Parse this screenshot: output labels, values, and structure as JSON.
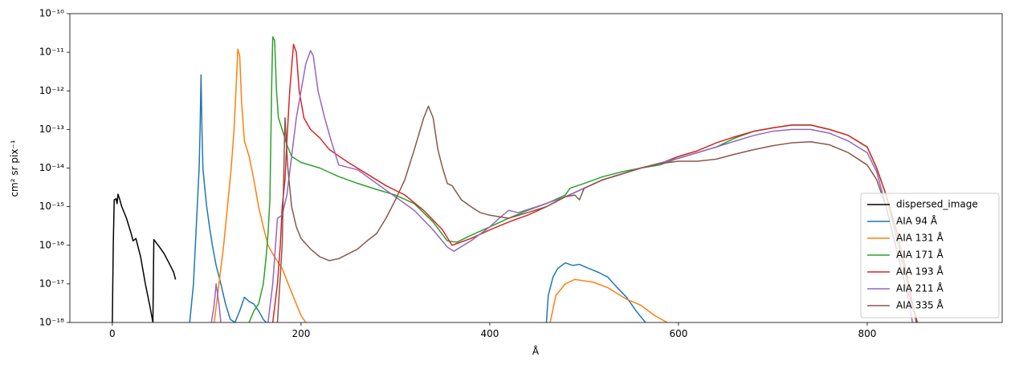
{
  "chart_data": {
    "type": "line",
    "x_label": "Å",
    "y_label": "cm² sr pix⁻¹",
    "yscale": "log",
    "legend": "lower right",
    "xlim": [
      -45,
      943
    ],
    "xticks": [
      0,
      200,
      400,
      600,
      800
    ],
    "ylim": [
      1e-18,
      1e-10
    ],
    "yticks": [
      {
        "value": 1e-18,
        "label": "10⁻¹⁸"
      },
      {
        "value": 1e-17,
        "label": "10⁻¹⁷"
      },
      {
        "value": 1e-16,
        "label": "10⁻¹⁶"
      },
      {
        "value": 1e-15,
        "label": "10⁻¹⁵"
      },
      {
        "value": 1e-14,
        "label": "10⁻¹⁴"
      },
      {
        "value": 1e-13,
        "label": "10⁻¹³"
      },
      {
        "value": 1e-12,
        "label": "10⁻¹²"
      },
      {
        "value": 1e-11,
        "label": "10⁻¹¹"
      },
      {
        "value": 1e-10,
        "label": "10⁻¹⁰"
      }
    ],
    "series": [
      {
        "name": "dispersed_image",
        "color": "#000000",
        "x": [
          0,
          1,
          2,
          4,
          5,
          6,
          8,
          10,
          15,
          20,
          22,
          25,
          30,
          35,
          40,
          43,
          44,
          50,
          55,
          60,
          65,
          67
        ],
        "values": [
          1e-18,
          1e-16,
          1.5e-15,
          1.6e-15,
          1.2e-15,
          2.1e-15,
          1.5e-15,
          1e-15,
          5e-16,
          2e-16,
          1.3e-16,
          1.5e-16,
          5e-17,
          1e-17,
          2.5e-18,
          1e-18,
          1.4e-16,
          9e-17,
          6e-17,
          3.5e-17,
          2e-17,
          1.3e-17
        ]
      },
      {
        "name": "AIA 94 Å",
        "color": "#1f77b4",
        "x": [
          82,
          86,
          88,
          90,
          92,
          93,
          94,
          95,
          96,
          98,
          100,
          103,
          106,
          110,
          115,
          120,
          125,
          130,
          135,
          140,
          145,
          150,
          155,
          160,
          163,
          null,
          460,
          462,
          467,
          472,
          480,
          488,
          495,
          505,
          515,
          525,
          535,
          545,
          555,
          565
        ],
        "values": [
          1e-18,
          1e-17,
          1e-16,
          1e-15,
          1e-14,
          1e-13,
          2.6e-12,
          1e-13,
          1e-14,
          3e-15,
          1e-15,
          3e-16,
          1e-16,
          3e-17,
          1e-17,
          3e-18,
          1.2e-18,
          1e-18,
          2e-18,
          4.5e-18,
          3.5e-18,
          3e-18,
          2e-18,
          1.2e-18,
          1e-18,
          null,
          1e-18,
          5e-18,
          1.5e-17,
          2.5e-17,
          3.5e-17,
          3e-17,
          3.2e-17,
          2.5e-17,
          2e-17,
          1.5e-17,
          8e-18,
          4.5e-18,
          2e-18,
          1e-18
        ]
      },
      {
        "name": "AIA 131 Å",
        "color": "#ff7f0e",
        "x": [
          108,
          113,
          118,
          122,
          126,
          129,
          131,
          133,
          135,
          137,
          140,
          145,
          150,
          155,
          160,
          165,
          170,
          180,
          190,
          200,
          205,
          null,
          464,
          470,
          480,
          490,
          500,
          510,
          525,
          545,
          560,
          575,
          588
        ],
        "values": [
          1e-18,
          1e-17,
          1e-16,
          1e-15,
          1e-14,
          1e-13,
          1e-12,
          1.2e-11,
          8e-12,
          5e-13,
          5e-14,
          2e-14,
          5e-15,
          1e-15,
          3e-16,
          1e-16,
          6e-17,
          2.5e-17,
          6e-18,
          1.5e-18,
          1e-18,
          null,
          1e-18,
          5e-18,
          1e-17,
          1.3e-17,
          1.2e-17,
          1.1e-17,
          8e-18,
          4e-18,
          2.8e-18,
          1.5e-18,
          1e-18
        ]
      },
      {
        "name": "AIA 171 Å",
        "color": "#2ca02c",
        "x": [
          145,
          150,
          155,
          160,
          163,
          165,
          167,
          169,
          170,
          172,
          174,
          176,
          180,
          185,
          190,
          200,
          220,
          240,
          260,
          280,
          300,
          320,
          340,
          355,
          365,
          380,
          400,
          420,
          440,
          460,
          480,
          485,
          500,
          520,
          540,
          560,
          580,
          600,
          620,
          640,
          660,
          680,
          700,
          720,
          740,
          760,
          780,
          800,
          810,
          820,
          830,
          840,
          850,
          853
        ],
        "values": [
          1e-18,
          2e-18,
          3e-18,
          1e-17,
          5e-17,
          2e-16,
          1.5e-15,
          2e-12,
          2.5e-11,
          2e-11,
          1e-12,
          2e-13,
          1e-13,
          4e-14,
          2e-14,
          1.4e-14,
          1e-14,
          6e-15,
          4e-15,
          2.8e-15,
          2e-15,
          1.2e-15,
          4e-16,
          1.3e-16,
          1.2e-16,
          1.8e-16,
          3e-16,
          5e-16,
          8e-16,
          1.2e-15,
          2e-15,
          3e-15,
          4e-15,
          6e-15,
          8e-15,
          1e-14,
          1.2e-14,
          1.8e-14,
          2.5e-14,
          3.5e-14,
          6e-14,
          9e-14,
          1.1e-13,
          1.3e-13,
          1.3e-13,
          1e-13,
          7e-14,
          3.5e-14,
          1e-14,
          2e-15,
          2e-16,
          2e-17,
          2e-18,
          1e-18
        ]
      },
      {
        "name": "AIA 193 Å",
        "color": "#d62728",
        "x": [
          170,
          175,
          178,
          180,
          183,
          185,
          188,
          192,
          195,
          198,
          203,
          210,
          220,
          230,
          250,
          270,
          290,
          310,
          330,
          350,
          360,
          380,
          400,
          420,
          440,
          460,
          480,
          500,
          520,
          540,
          560,
          580,
          600,
          620,
          640,
          660,
          680,
          700,
          720,
          740,
          760,
          780,
          800,
          810,
          820,
          830,
          840,
          848,
          852
        ],
        "values": [
          1e-18,
          1e-17,
          1e-16,
          1e-15,
          5e-15,
          5e-14,
          1e-12,
          1.6e-11,
          1e-11,
          1e-12,
          2e-13,
          1e-13,
          6e-14,
          3e-14,
          1.4e-14,
          7e-15,
          3.5e-15,
          2e-15,
          8e-16,
          2.5e-16,
          1e-16,
          1.5e-16,
          2.5e-16,
          4e-16,
          6e-16,
          1e-15,
          1.8e-15,
          3e-15,
          5e-15,
          7e-15,
          1e-14,
          1.3e-14,
          2e-14,
          2.8e-14,
          4.5e-14,
          6.5e-14,
          9e-14,
          1.1e-13,
          1.3e-13,
          1.3e-13,
          1e-13,
          7e-14,
          3.5e-14,
          1e-14,
          2e-15,
          3e-16,
          3e-17,
          3e-18,
          1e-18
        ]
      },
      {
        "name": "AIA 211 Å",
        "color": "#9467bd",
        "x": [
          105,
          108,
          110,
          113,
          115,
          null,
          165,
          170,
          175,
          180,
          185,
          190,
          195,
          200,
          205,
          210,
          213,
          218,
          225,
          232,
          240,
          260,
          280,
          300,
          320,
          340,
          355,
          362,
          380,
          400,
          410,
          420,
          430,
          450,
          480,
          520,
          560,
          600,
          640,
          660,
          680,
          700,
          720,
          740,
          760,
          780,
          800,
          810,
          820,
          830,
          840,
          848
        ],
        "values": [
          1e-18,
          3e-18,
          1e-17,
          3e-18,
          1e-18,
          null,
          1e-18,
          1e-17,
          5e-16,
          6e-16,
          2e-15,
          2e-14,
          2e-13,
          1e-12,
          5e-12,
          1.1e-11,
          8e-12,
          1e-12,
          2e-13,
          5e-14,
          1.2e-14,
          9e-15,
          4e-15,
          1.8e-15,
          8e-16,
          2.5e-16,
          9e-17,
          7e-17,
          1.3e-16,
          3e-16,
          5e-16,
          8e-16,
          7e-16,
          1e-15,
          1.8e-15,
          5e-15,
          1e-14,
          1.8e-14,
          3.5e-14,
          5e-14,
          7e-14,
          9e-14,
          1e-13,
          1e-13,
          8e-14,
          5e-14,
          2.5e-14,
          8e-15,
          1e-15,
          1e-16,
          1e-17,
          1e-18
        ]
      },
      {
        "name": "AIA 335 Å",
        "color": "#8c564b",
        "x": [
          175,
          180,
          183,
          186,
          190,
          195,
          200,
          210,
          220,
          230,
          240,
          250,
          260,
          270,
          280,
          290,
          300,
          310,
          320,
          330,
          335,
          340,
          345,
          350,
          355,
          360,
          370,
          380,
          390,
          400,
          420,
          440,
          460,
          480,
          490,
          495,
          500,
          520,
          540,
          560,
          580,
          600,
          620,
          640,
          660,
          680,
          700,
          720,
          740,
          760,
          780,
          800,
          810,
          820,
          830,
          840,
          850,
          853
        ],
        "values": [
          1e-18,
          1e-16,
          2e-13,
          1e-14,
          1e-15,
          3e-16,
          1.5e-16,
          8e-17,
          5e-17,
          4e-17,
          4.5e-17,
          6e-17,
          8e-17,
          1.3e-16,
          2e-16,
          5e-16,
          1.5e-15,
          5e-15,
          3e-14,
          2e-13,
          4e-13,
          2e-13,
          3e-14,
          1e-14,
          4e-15,
          3.5e-15,
          1.5e-15,
          1e-15,
          7e-16,
          6e-16,
          5e-16,
          7e-16,
          1e-15,
          1.8e-15,
          2e-15,
          1.5e-15,
          3e-15,
          5e-15,
          7e-15,
          1e-14,
          1.3e-14,
          1.5e-14,
          1.5e-14,
          1.7e-14,
          2.3e-14,
          3e-14,
          3.8e-14,
          4.5e-14,
          4.8e-14,
          4e-14,
          2.5e-14,
          1.2e-14,
          5e-15,
          1e-15,
          1e-16,
          1e-17,
          2e-18,
          1e-18
        ]
      }
    ]
  }
}
